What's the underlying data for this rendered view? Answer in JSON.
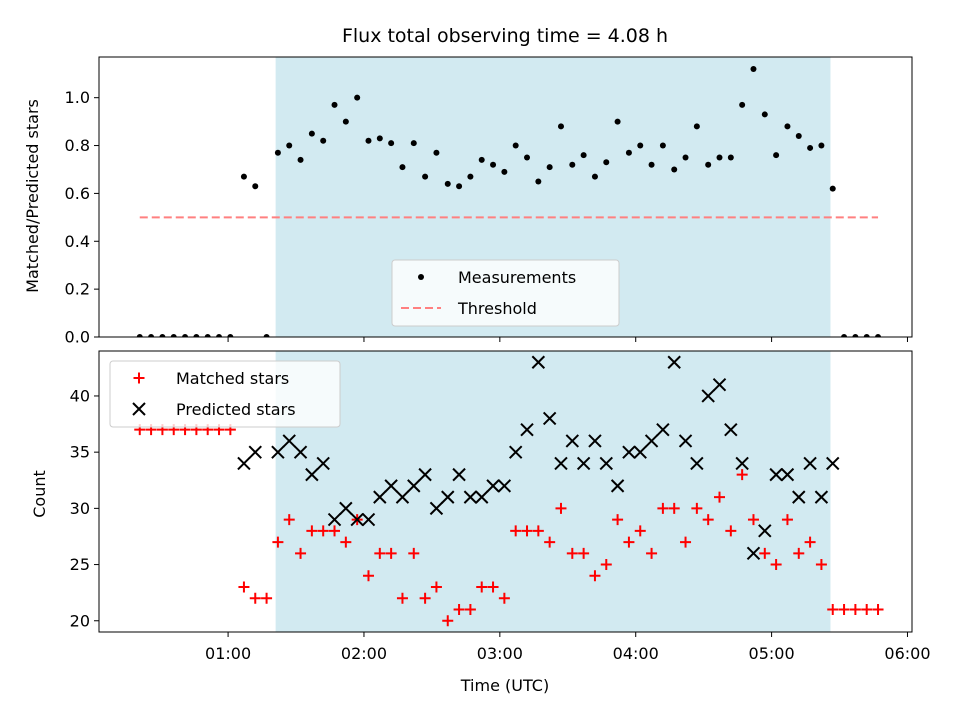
{
  "chart_data": [
    {
      "type": "scatter",
      "title": "Flux total observing time = 4.08 h",
      "xlabel": "",
      "ylabel": "Matched/Predicted stars",
      "xlim": [
        "00:03:00",
        "06:02:00"
      ],
      "ylim": [
        0,
        1.17
      ],
      "y_ticks": [
        "0.0",
        "0.2",
        "0.4",
        "0.6",
        "0.8",
        "1.0"
      ],
      "shaded_region": [
        "01:21:00",
        "05:26:00"
      ],
      "legend": {
        "placement": "lower-center",
        "entries": [
          "Measurements",
          "Threshold"
        ]
      },
      "series": [
        {
          "name": "Measurements",
          "color": "#000000",
          "marker": "dot",
          "points": [
            [
              "00:21",
              0
            ],
            [
              "00:26",
              0
            ],
            [
              "00:31",
              0
            ],
            [
              "00:36",
              0
            ],
            [
              "00:41",
              0
            ],
            [
              "00:46",
              0
            ],
            [
              "00:51",
              0
            ],
            [
              "00:56",
              0
            ],
            [
              "01:01",
              0
            ],
            [
              "01:07",
              0.67
            ],
            [
              "01:12",
              0.63
            ],
            [
              "01:17",
              0
            ],
            [
              "01:22",
              0.77
            ],
            [
              "01:27",
              0.8
            ],
            [
              "01:32",
              0.74
            ],
            [
              "01:37",
              0.85
            ],
            [
              "01:42",
              0.82
            ],
            [
              "01:47",
              0.97
            ],
            [
              "01:52",
              0.9
            ],
            [
              "01:57",
              1.0
            ],
            [
              "02:02",
              0.82
            ],
            [
              "02:07",
              0.83
            ],
            [
              "02:12",
              0.81
            ],
            [
              "02:17",
              0.71
            ],
            [
              "02:22",
              0.81
            ],
            [
              "02:27",
              0.67
            ],
            [
              "02:32",
              0.77
            ],
            [
              "02:37",
              0.64
            ],
            [
              "02:42",
              0.63
            ],
            [
              "02:47",
              0.67
            ],
            [
              "02:52",
              0.74
            ],
            [
              "02:57",
              0.72
            ],
            [
              "03:02",
              0.69
            ],
            [
              "03:07",
              0.8
            ],
            [
              "03:12",
              0.75
            ],
            [
              "03:17",
              0.65
            ],
            [
              "03:22",
              0.71
            ],
            [
              "03:27",
              0.88
            ],
            [
              "03:32",
              0.72
            ],
            [
              "03:37",
              0.76
            ],
            [
              "03:42",
              0.67
            ],
            [
              "03:47",
              0.73
            ],
            [
              "03:52",
              0.9
            ],
            [
              "03:57",
              0.77
            ],
            [
              "04:02",
              0.8
            ],
            [
              "04:07",
              0.72
            ],
            [
              "04:12",
              0.8
            ],
            [
              "04:17",
              0.7
            ],
            [
              "04:22",
              0.75
            ],
            [
              "04:27",
              0.88
            ],
            [
              "04:32",
              0.72
            ],
            [
              "04:37",
              0.75
            ],
            [
              "04:42",
              0.75
            ],
            [
              "04:47",
              0.97
            ],
            [
              "04:52",
              1.12
            ],
            [
              "04:57",
              0.93
            ],
            [
              "05:02",
              0.76
            ],
            [
              "05:07",
              0.88
            ],
            [
              "05:12",
              0.84
            ],
            [
              "05:17",
              0.79
            ],
            [
              "05:22",
              0.8
            ],
            [
              "05:27",
              0.62
            ],
            [
              "05:32",
              0
            ],
            [
              "05:37",
              0
            ],
            [
              "05:42",
              0
            ],
            [
              "05:47",
              0
            ]
          ]
        },
        {
          "name": "Threshold",
          "color": "#ff8080",
          "style": "dashed",
          "points": [
            [
              "00:21",
              0.5
            ],
            [
              "05:47",
              0.5
            ]
          ]
        }
      ]
    },
    {
      "type": "scatter",
      "title": "",
      "xlabel": "Time (UTC)",
      "ylabel": "Count",
      "xlim": [
        "00:03:00",
        "06:02:00"
      ],
      "ylim": [
        19,
        44
      ],
      "x_ticks": [
        "01:00",
        "02:00",
        "03:00",
        "04:00",
        "05:00",
        "06:00"
      ],
      "y_ticks": [
        "20",
        "25",
        "30",
        "35",
        "40"
      ],
      "shaded_region": [
        "01:21:00",
        "05:26:00"
      ],
      "legend": {
        "placement": "top-left",
        "entries": [
          "Matched stars",
          "Predicted stars"
        ]
      },
      "series": [
        {
          "name": "Matched stars",
          "color": "#ff0000",
          "marker": "plus",
          "points": [
            [
              "00:21",
              37
            ],
            [
              "00:26",
              37
            ],
            [
              "00:31",
              37
            ],
            [
              "00:36",
              37
            ],
            [
              "00:41",
              37
            ],
            [
              "00:46",
              37
            ],
            [
              "00:51",
              37
            ],
            [
              "00:56",
              37
            ],
            [
              "01:01",
              37
            ],
            [
              "01:07",
              23
            ],
            [
              "01:12",
              22
            ],
            [
              "01:17",
              22
            ],
            [
              "01:22",
              27
            ],
            [
              "01:27",
              29
            ],
            [
              "01:32",
              26
            ],
            [
              "01:37",
              28
            ],
            [
              "01:42",
              28
            ],
            [
              "01:47",
              28
            ],
            [
              "01:52",
              27
            ],
            [
              "01:57",
              29
            ],
            [
              "02:02",
              24
            ],
            [
              "02:07",
              26
            ],
            [
              "02:12",
              26
            ],
            [
              "02:17",
              22
            ],
            [
              "02:22",
              26
            ],
            [
              "02:27",
              22
            ],
            [
              "02:32",
              23
            ],
            [
              "02:37",
              20
            ],
            [
              "02:42",
              21
            ],
            [
              "02:47",
              21
            ],
            [
              "02:52",
              23
            ],
            [
              "02:57",
              23
            ],
            [
              "03:02",
              22
            ],
            [
              "03:07",
              28
            ],
            [
              "03:12",
              28
            ],
            [
              "03:17",
              28
            ],
            [
              "03:22",
              27
            ],
            [
              "03:27",
              30
            ],
            [
              "03:32",
              26
            ],
            [
              "03:37",
              26
            ],
            [
              "03:42",
              24
            ],
            [
              "03:47",
              25
            ],
            [
              "03:52",
              29
            ],
            [
              "03:57",
              27
            ],
            [
              "04:02",
              28
            ],
            [
              "04:07",
              26
            ],
            [
              "04:12",
              30
            ],
            [
              "04:17",
              30
            ],
            [
              "04:22",
              27
            ],
            [
              "04:27",
              30
            ],
            [
              "04:32",
              29
            ],
            [
              "04:37",
              31
            ],
            [
              "04:42",
              28
            ],
            [
              "04:47",
              33
            ],
            [
              "04:52",
              29
            ],
            [
              "04:57",
              26
            ],
            [
              "05:02",
              25
            ],
            [
              "05:07",
              29
            ],
            [
              "05:12",
              26
            ],
            [
              "05:17",
              27
            ],
            [
              "05:22",
              25
            ],
            [
              "05:27",
              21
            ],
            [
              "05:32",
              21
            ],
            [
              "05:37",
              21
            ],
            [
              "05:42",
              21
            ],
            [
              "05:47",
              21
            ]
          ]
        },
        {
          "name": "Predicted stars",
          "color": "#000000",
          "marker": "x",
          "points": [
            [
              "01:07",
              34
            ],
            [
              "01:12",
              35
            ],
            [
              "01:22",
              35
            ],
            [
              "01:27",
              36
            ],
            [
              "01:32",
              35
            ],
            [
              "01:37",
              33
            ],
            [
              "01:42",
              34
            ],
            [
              "01:47",
              29
            ],
            [
              "01:52",
              30
            ],
            [
              "01:57",
              29
            ],
            [
              "02:02",
              29
            ],
            [
              "02:07",
              31
            ],
            [
              "02:12",
              32
            ],
            [
              "02:17",
              31
            ],
            [
              "02:22",
              32
            ],
            [
              "02:27",
              33
            ],
            [
              "02:32",
              30
            ],
            [
              "02:37",
              31
            ],
            [
              "02:42",
              33
            ],
            [
              "02:47",
              31
            ],
            [
              "02:52",
              31
            ],
            [
              "02:57",
              32
            ],
            [
              "03:02",
              32
            ],
            [
              "03:07",
              35
            ],
            [
              "03:12",
              37
            ],
            [
              "03:17",
              43
            ],
            [
              "03:22",
              38
            ],
            [
              "03:27",
              34
            ],
            [
              "03:32",
              36
            ],
            [
              "03:37",
              34
            ],
            [
              "03:42",
              36
            ],
            [
              "03:47",
              34
            ],
            [
              "03:52",
              32
            ],
            [
              "03:57",
              35
            ],
            [
              "04:02",
              35
            ],
            [
              "04:07",
              36
            ],
            [
              "04:12",
              37
            ],
            [
              "04:17",
              43
            ],
            [
              "04:22",
              36
            ],
            [
              "04:27",
              34
            ],
            [
              "04:32",
              40
            ],
            [
              "04:37",
              41
            ],
            [
              "04:42",
              37
            ],
            [
              "04:47",
              34
            ],
            [
              "04:52",
              26
            ],
            [
              "04:57",
              28
            ],
            [
              "05:02",
              33
            ],
            [
              "05:07",
              33
            ],
            [
              "05:12",
              31
            ],
            [
              "05:17",
              34
            ],
            [
              "05:22",
              31
            ],
            [
              "05:27",
              34
            ]
          ]
        }
      ]
    }
  ],
  "colors": {
    "shade": "#add8e6",
    "threshold": "#ff8080",
    "matched": "#ff0000",
    "predicted": "#000000"
  }
}
